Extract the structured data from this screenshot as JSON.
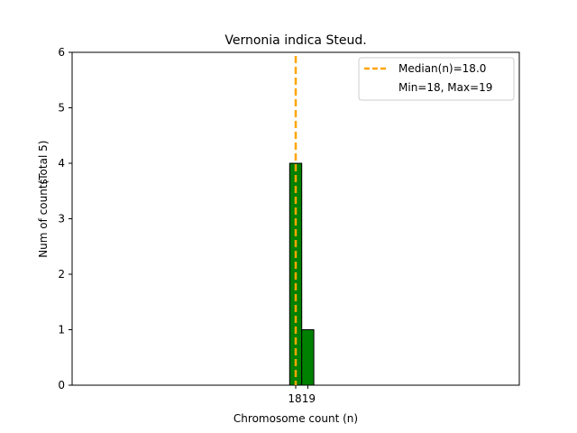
{
  "chart_data": {
    "type": "bar",
    "title": "Vernonia indica Steud.",
    "xlabel": "Chromosome count (n)",
    "ylabel": "Num of counts",
    "ylabel_note": "(Total 5)",
    "categories": [
      18,
      19
    ],
    "values": [
      4,
      1
    ],
    "bar_color": "#008000",
    "bar_edge_color": "#000000",
    "xlim": [
      -0.5,
      36.5
    ],
    "ylim": [
      0,
      6
    ],
    "yticks": [
      0,
      1,
      2,
      3,
      4,
      5,
      6
    ],
    "xticks": [
      18,
      19
    ],
    "median": 18.0,
    "median_color": "#FFA500",
    "legend": {
      "placement": "top-right",
      "entries": [
        "Median(n)=18.0",
        "Min=18, Max=19"
      ]
    },
    "grid": false
  }
}
